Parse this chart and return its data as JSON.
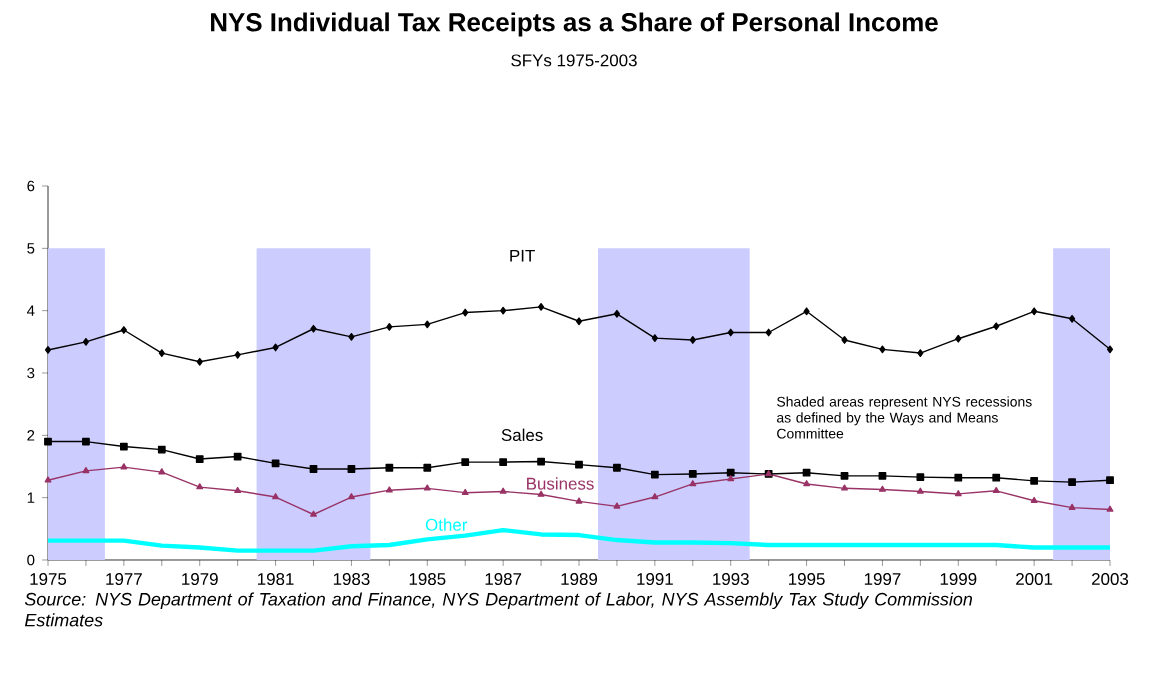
{
  "chart_data": {
    "type": "line",
    "title": "NYS Individual Tax Receipts as a Share of Personal Income",
    "subtitle": "SFYs 1975-2003",
    "x": [
      1975,
      1976,
      1977,
      1978,
      1979,
      1980,
      1981,
      1982,
      1983,
      1984,
      1985,
      1986,
      1987,
      1988,
      1989,
      1990,
      1991,
      1992,
      1993,
      1994,
      1995,
      1996,
      1997,
      1998,
      1999,
      2000,
      2001,
      2002,
      2003
    ],
    "series": [
      {
        "name": "PIT",
        "color": "#000000",
        "marker": "diamond",
        "values": [
          3.37,
          3.5,
          3.69,
          3.32,
          3.18,
          3.29,
          3.41,
          3.71,
          3.58,
          3.74,
          3.78,
          3.97,
          4.0,
          4.06,
          3.83,
          3.95,
          3.56,
          3.53,
          3.65,
          3.65,
          3.99,
          3.53,
          3.38,
          3.32,
          3.55,
          3.75,
          3.99,
          3.87,
          3.38
        ]
      },
      {
        "name": "Sales",
        "color": "#000000",
        "marker": "square",
        "values": [
          1.9,
          1.9,
          1.82,
          1.77,
          1.62,
          1.66,
          1.55,
          1.46,
          1.46,
          1.48,
          1.48,
          1.57,
          1.57,
          1.58,
          1.53,
          1.48,
          1.37,
          1.38,
          1.4,
          1.38,
          1.4,
          1.35,
          1.35,
          1.33,
          1.32,
          1.32,
          1.27,
          1.25,
          1.28
        ]
      },
      {
        "name": "Business",
        "color": "#993366",
        "marker": "triangle",
        "values": [
          1.28,
          1.43,
          1.49,
          1.41,
          1.17,
          1.11,
          1.01,
          0.73,
          1.01,
          1.12,
          1.15,
          1.08,
          1.1,
          1.05,
          0.94,
          0.86,
          1.01,
          1.22,
          1.3,
          1.38,
          1.22,
          1.15,
          1.13,
          1.1,
          1.06,
          1.11,
          0.95,
          0.84,
          0.81
        ]
      },
      {
        "name": "Other",
        "color": "#00ffff",
        "marker": "none",
        "values": [
          0.31,
          0.31,
          0.31,
          0.23,
          0.2,
          0.15,
          0.15,
          0.15,
          0.22,
          0.24,
          0.33,
          0.39,
          0.48,
          0.41,
          0.4,
          0.32,
          0.28,
          0.28,
          0.27,
          0.24,
          0.24,
          0.24,
          0.24,
          0.24,
          0.24,
          0.24,
          0.2,
          0.2,
          0.2
        ]
      }
    ],
    "xlim": [
      1975,
      2003
    ],
    "xticks": [
      1975,
      {
        "value": 1976,
        "label": null
      },
      1977,
      {
        "value": 1978,
        "label": null
      },
      1979,
      {
        "value": 1980,
        "label": null
      },
      1981,
      {
        "value": 1982,
        "label": null
      },
      1983,
      {
        "value": 1984,
        "label": null
      },
      1985,
      {
        "value": 1986,
        "label": null
      },
      1987,
      {
        "value": 1988,
        "label": null
      },
      1989,
      {
        "value": 1990,
        "label": null
      },
      1991,
      {
        "value": 1992,
        "label": null
      },
      1993,
      {
        "value": 1994,
        "label": null
      },
      1995,
      {
        "value": 1996,
        "label": null
      },
      1997,
      {
        "value": 1998,
        "label": null
      },
      1999,
      {
        "value": 2000,
        "label": null
      },
      2001,
      {
        "value": 2002,
        "label": null
      },
      2003
    ],
    "ylim": [
      0,
      6
    ],
    "yticks": [
      0,
      1,
      2,
      3,
      4,
      5,
      6
    ],
    "bands": [
      {
        "axis": "x",
        "from": 1975,
        "to": 1976.5,
        "color": "#ccccff"
      },
      {
        "axis": "x",
        "from": 1980.5,
        "to": 1983.5,
        "color": "#ccccff"
      },
      {
        "axis": "x",
        "from": 1989.5,
        "to": 1993.5,
        "color": "#ccccff"
      },
      {
        "axis": "x",
        "from": 2001.5,
        "to": 2003,
        "color": "#ccccff"
      }
    ],
    "annotations": [
      "Shaded areas represent NYS recessions as defined by the Ways and Means Committee",
      "Source: NYS Department of Taxation and Finance, NYS Department of Labor, NYS Assembly Tax Study Commission Estimates"
    ],
    "grid": false,
    "line_style": "solid"
  }
}
